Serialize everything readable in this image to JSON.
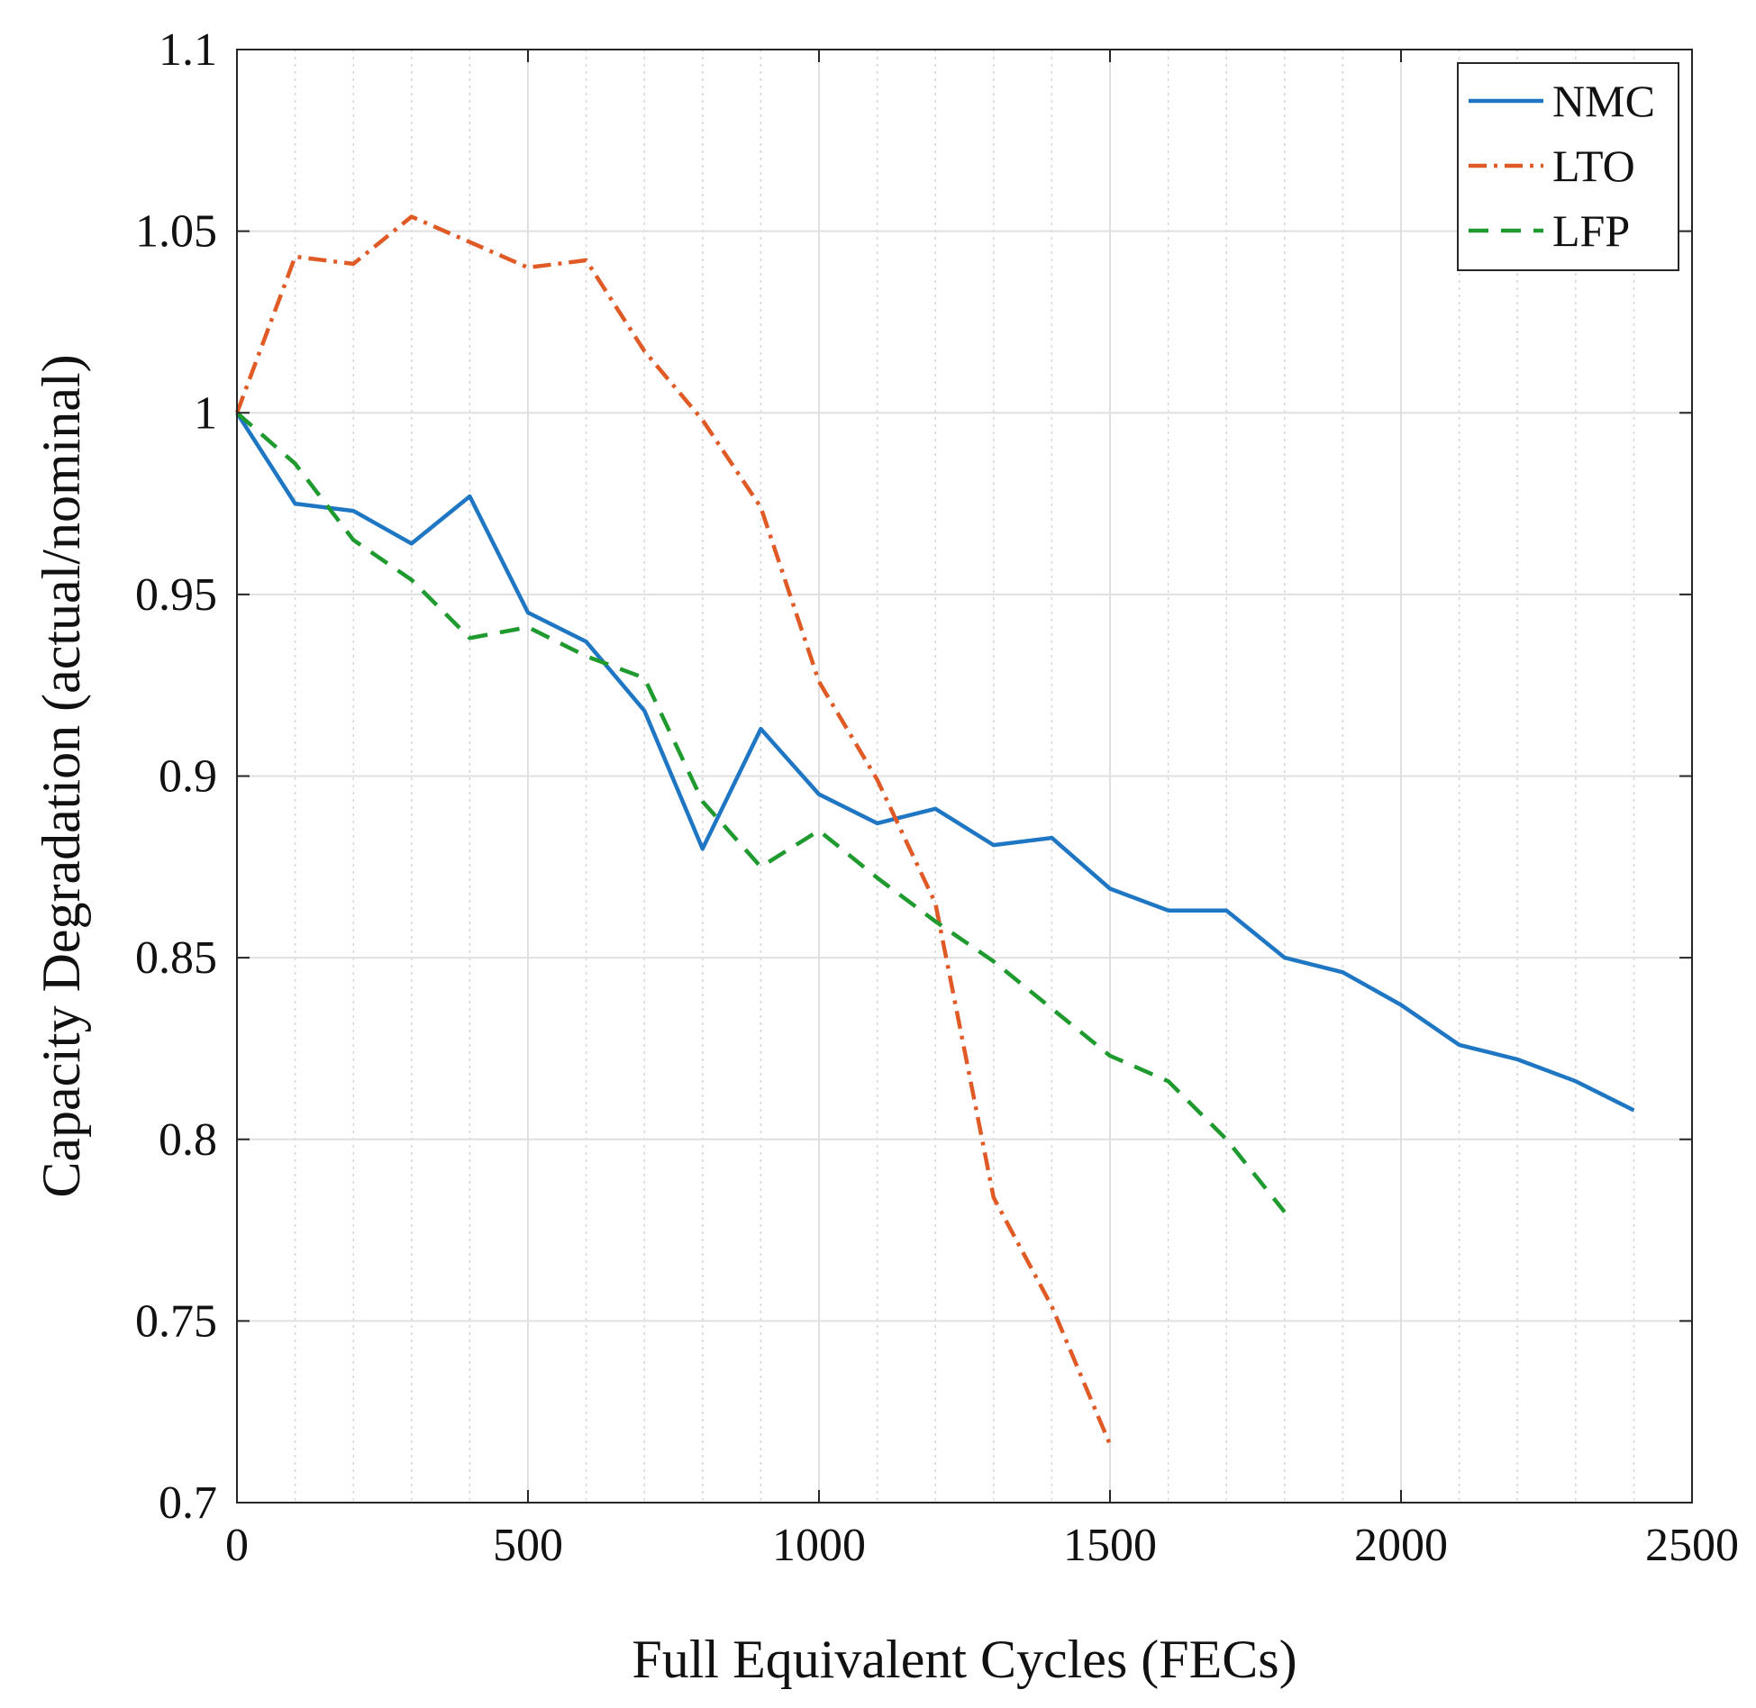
{
  "chart_data": {
    "type": "line",
    "xlabel": "Full Equivalent Cycles (FECs)",
    "ylabel": "Capacity Degradation (actual/nominal)",
    "xlim": [
      0,
      2500
    ],
    "ylim": [
      0.7,
      1.1
    ],
    "xticks": [
      0,
      500,
      1000,
      1500,
      2000,
      2500
    ],
    "xtick_labels": [
      "0",
      "500",
      "1000",
      "1500",
      "2000",
      "2500"
    ],
    "yticks": [
      0.7,
      0.75,
      0.8,
      0.85,
      0.9,
      0.95,
      1.0,
      1.05,
      1.1
    ],
    "ytick_labels": [
      "0.7",
      "0.75",
      "0.8",
      "0.85",
      "0.9",
      "0.95",
      "1",
      "1.05",
      "1.1"
    ],
    "grid": true,
    "legend_position": "top-right",
    "series": [
      {
        "name": "NMC",
        "color": "#1f77c4",
        "style": "solid",
        "x": [
          0,
          100,
          200,
          300,
          400,
          500,
          600,
          700,
          800,
          900,
          1000,
          1100,
          1200,
          1300,
          1400,
          1500,
          1600,
          1700,
          1800,
          1900,
          2000,
          2100,
          2200,
          2300,
          2400
        ],
        "values": [
          1.0,
          0.975,
          0.973,
          0.964,
          0.977,
          0.945,
          0.937,
          0.918,
          0.88,
          0.913,
          0.895,
          0.887,
          0.891,
          0.881,
          0.883,
          0.869,
          0.863,
          0.863,
          0.85,
          0.846,
          0.837,
          0.826,
          0.822,
          0.816,
          0.808
        ]
      },
      {
        "name": "LTO",
        "color": "#e05a26",
        "style": "dashdot",
        "x": [
          0,
          100,
          200,
          300,
          400,
          500,
          600,
          700,
          800,
          900,
          1000,
          1100,
          1200,
          1300,
          1400,
          1500
        ],
        "values": [
          1.0,
          1.043,
          1.041,
          1.054,
          1.047,
          1.04,
          1.042,
          1.017,
          0.998,
          0.974,
          0.926,
          0.899,
          0.865,
          0.784,
          0.754,
          0.716
        ]
      },
      {
        "name": "LFP",
        "color": "#1e9a2e",
        "style": "dashed",
        "x": [
          0,
          100,
          200,
          300,
          400,
          500,
          600,
          700,
          800,
          900,
          1000,
          1100,
          1200,
          1300,
          1400,
          1500,
          1600,
          1700,
          1800
        ],
        "values": [
          1.0,
          0.986,
          0.965,
          0.954,
          0.938,
          0.941,
          0.933,
          0.927,
          0.893,
          0.875,
          0.885,
          0.872,
          0.86,
          0.849,
          0.836,
          0.823,
          0.816,
          0.8,
          0.78
        ]
      }
    ]
  }
}
